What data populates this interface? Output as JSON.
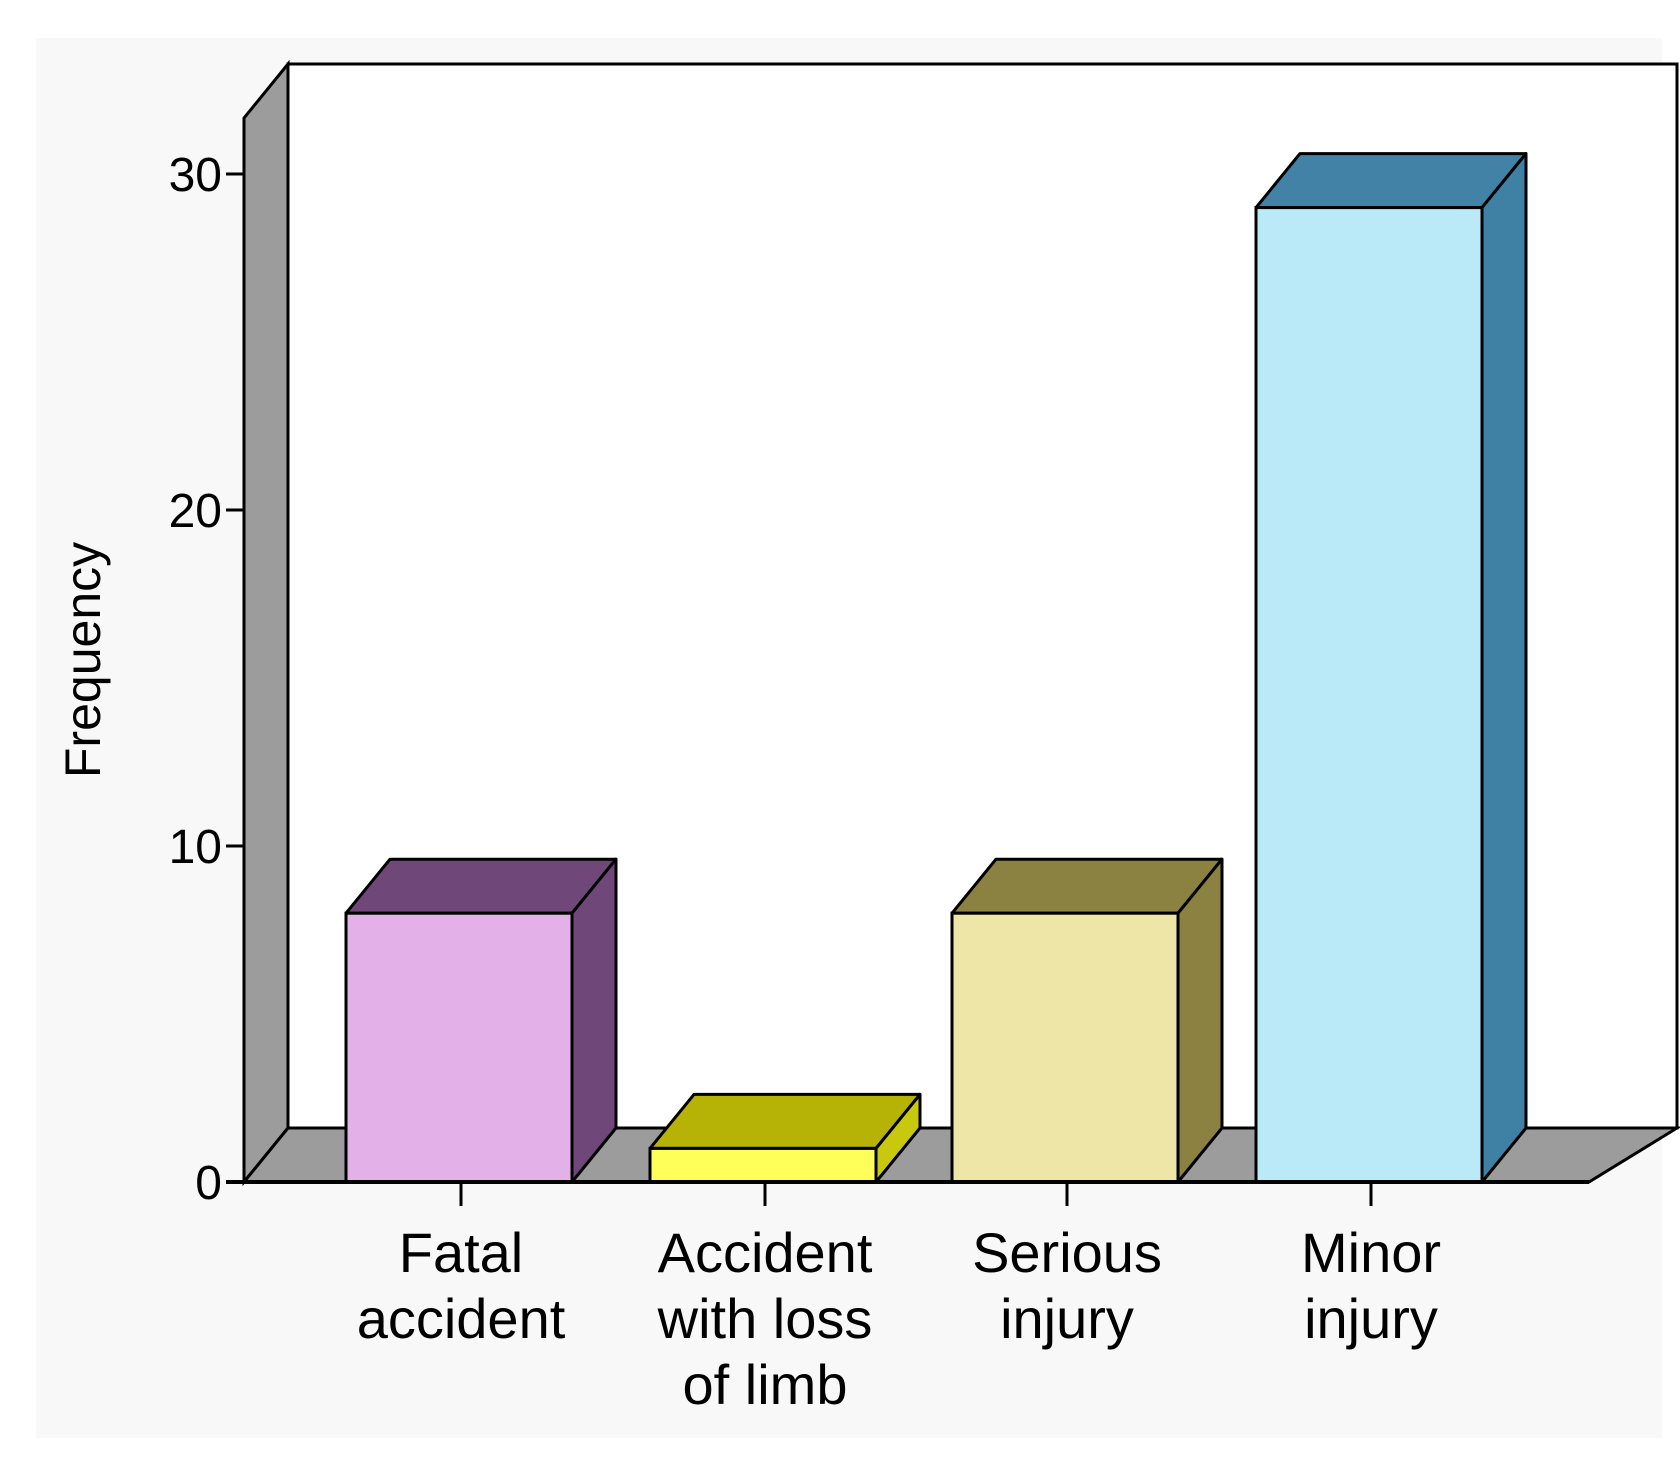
{
  "chart_data": {
    "type": "bar",
    "style": "3d",
    "title": "",
    "xlabel": "",
    "ylabel": "Frequency",
    "categories": [
      "Fatal accident",
      "Accident with loss of limb",
      "Serious injury",
      "Minor injury"
    ],
    "category_lines": [
      [
        "Fatal",
        "accident"
      ],
      [
        "Accident",
        "with loss",
        "of limb"
      ],
      [
        "Serious",
        "injury"
      ],
      [
        "Minor",
        "injury"
      ]
    ],
    "values": [
      8,
      1,
      8,
      29
    ],
    "ylim": [
      0,
      32
    ],
    "yticks": [
      0,
      10,
      20,
      30
    ],
    "grid": false,
    "legend": null,
    "colors": {
      "front": [
        "#e3b0e7",
        "#ffff5a",
        "#ede6a6",
        "#bae9f8"
      ],
      "side": [
        "#704779",
        "#c8c80e",
        "#8b8141",
        "#3f80a5"
      ],
      "top": [
        "#704779",
        "#b7b206",
        "#8b8141",
        "#4382a7"
      ],
      "wall": "#9c9c9c",
      "panel": "#ffffff",
      "background": "#f8f8f8"
    }
  }
}
